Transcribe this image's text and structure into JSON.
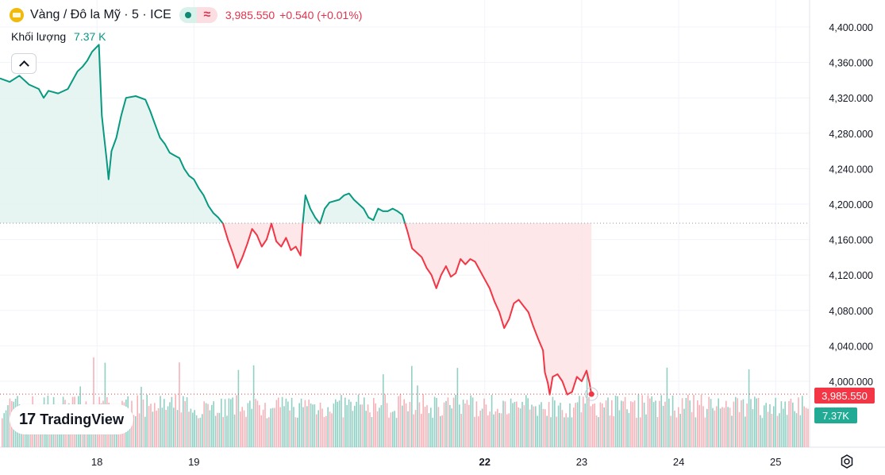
{
  "legend": {
    "title": "Vàng / Đô la Mỹ · 5 · ICE",
    "wave_symbol": "≈",
    "last": "3,985.550",
    "change": "+0.540 (+0.01%)",
    "volume_label": "Khối lượng",
    "volume_value": "7.37 K"
  },
  "logo_text": "TradingView",
  "logo_mark": "17",
  "price_tag": "3,985.550",
  "volume_tag": "7.37K",
  "colors": {
    "up": "#089981",
    "down": "#f23645",
    "up_fill": "#e3f4ef",
    "down_fill": "#fde4e7",
    "vol_up": "#7fc8ba",
    "vol_down": "#f6a4ad",
    "grid": "#f0f3fa"
  },
  "chart_data": {
    "type": "line",
    "baseline": 4178.5,
    "ylim": [
      3940,
      4410
    ],
    "yticks": [
      {
        "v": 4400,
        "label": "4,400.000"
      },
      {
        "v": 4360,
        "label": "4,360.000"
      },
      {
        "v": 4320,
        "label": "4,320.000"
      },
      {
        "v": 4280,
        "label": "4,280.000"
      },
      {
        "v": 4240,
        "label": "4,240.000"
      },
      {
        "v": 4200,
        "label": "4,200.000"
      },
      {
        "v": 4160,
        "label": "4,160.000"
      },
      {
        "v": 4120,
        "label": "4,120.000"
      },
      {
        "v": 4080,
        "label": "4,080.000"
      },
      {
        "v": 4040,
        "label": "4,040.000"
      },
      {
        "v": 4000,
        "label": "4,000.000"
      }
    ],
    "xticks": [
      {
        "x": 18,
        "label": "18",
        "bold": false
      },
      {
        "x": 19,
        "label": "19",
        "bold": false
      },
      {
        "x": 22,
        "label": "22",
        "bold": true
      },
      {
        "x": 23,
        "label": "23",
        "bold": false
      },
      {
        "x": 24,
        "label": "24",
        "bold": false
      },
      {
        "x": 25,
        "label": "25",
        "bold": false
      }
    ],
    "xlim": [
      17.0,
      25.35
    ],
    "series": [
      {
        "points": [
          [
            17.0,
            4342
          ],
          [
            17.1,
            4338
          ],
          [
            17.2,
            4345
          ],
          [
            17.3,
            4335
          ],
          [
            17.4,
            4330
          ],
          [
            17.45,
            4320
          ],
          [
            17.5,
            4328
          ],
          [
            17.6,
            4325
          ],
          [
            17.7,
            4330
          ],
          [
            17.75,
            4340
          ],
          [
            17.8,
            4350
          ],
          [
            17.85,
            4355
          ],
          [
            17.9,
            4362
          ],
          [
            17.95,
            4372
          ],
          [
            18.02,
            4380
          ],
          [
            18.05,
            4300
          ],
          [
            18.07,
            4280
          ],
          [
            18.1,
            4250
          ],
          [
            18.12,
            4228
          ],
          [
            18.15,
            4260
          ],
          [
            18.2,
            4275
          ],
          [
            18.25,
            4300
          ],
          [
            18.3,
            4320
          ],
          [
            18.4,
            4322
          ],
          [
            18.5,
            4318
          ],
          [
            18.55,
            4305
          ],
          [
            18.6,
            4290
          ],
          [
            18.65,
            4275
          ],
          [
            18.7,
            4268
          ],
          [
            18.75,
            4258
          ],
          [
            18.8,
            4255
          ],
          [
            18.85,
            4252
          ],
          [
            18.9,
            4240
          ],
          [
            18.95,
            4232
          ],
          [
            19.0,
            4228
          ],
          [
            19.05,
            4218
          ],
          [
            19.1,
            4210
          ],
          [
            19.15,
            4198
          ],
          [
            19.2,
            4190
          ],
          [
            19.25,
            4185
          ],
          [
            19.3,
            4178
          ],
          [
            19.35,
            4160
          ],
          [
            19.4,
            4145
          ],
          [
            19.45,
            4128
          ],
          [
            19.5,
            4140
          ],
          [
            19.55,
            4155
          ],
          [
            19.6,
            4172
          ],
          [
            19.65,
            4165
          ],
          [
            19.7,
            4152
          ],
          [
            19.75,
            4160
          ],
          [
            19.8,
            4178
          ],
          [
            19.85,
            4158
          ],
          [
            19.9,
            4152
          ],
          [
            19.95,
            4162
          ],
          [
            20.0,
            4148
          ],
          [
            20.05,
            4152
          ],
          [
            20.1,
            4142
          ],
          [
            20.12,
            4175
          ],
          [
            20.15,
            4210
          ],
          [
            20.2,
            4195
          ],
          [
            20.25,
            4185
          ],
          [
            20.3,
            4178
          ],
          [
            20.35,
            4195
          ],
          [
            20.4,
            4202
          ],
          [
            20.5,
            4205
          ],
          [
            20.55,
            4210
          ],
          [
            20.6,
            4212
          ],
          [
            20.65,
            4205
          ],
          [
            20.7,
            4200
          ],
          [
            20.75,
            4195
          ],
          [
            20.8,
            4185
          ],
          [
            20.85,
            4182
          ],
          [
            20.9,
            4195
          ],
          [
            20.95,
            4192
          ],
          [
            21.0,
            4192
          ],
          [
            21.05,
            4195
          ],
          [
            21.1,
            4192
          ],
          [
            21.15,
            4188
          ],
          [
            21.2,
            4170
          ],
          [
            21.25,
            4150
          ],
          [
            21.3,
            4145
          ],
          [
            21.35,
            4140
          ],
          [
            21.4,
            4128
          ],
          [
            21.45,
            4120
          ],
          [
            21.5,
            4105
          ],
          [
            21.55,
            4120
          ],
          [
            21.6,
            4130
          ],
          [
            21.65,
            4118
          ],
          [
            21.7,
            4122
          ],
          [
            21.75,
            4138
          ],
          [
            21.8,
            4132
          ],
          [
            21.85,
            4138
          ],
          [
            21.9,
            4135
          ],
          [
            21.95,
            4125
          ],
          [
            22.0,
            4115
          ],
          [
            22.05,
            4105
          ],
          [
            22.1,
            4090
          ],
          [
            22.15,
            4078
          ],
          [
            22.2,
            4060
          ],
          [
            22.25,
            4070
          ],
          [
            22.3,
            4088
          ],
          [
            22.35,
            4092
          ],
          [
            22.4,
            4085
          ],
          [
            22.45,
            4078
          ],
          [
            22.5,
            4062
          ],
          [
            22.55,
            4048
          ],
          [
            22.6,
            4035
          ],
          [
            22.62,
            4010
          ],
          [
            22.65,
            3998
          ],
          [
            22.67,
            3985
          ],
          [
            22.7,
            4005
          ],
          [
            22.75,
            4008
          ],
          [
            22.8,
            4000
          ],
          [
            22.85,
            3985
          ],
          [
            22.9,
            3988
          ],
          [
            22.95,
            4005
          ],
          [
            23.0,
            4000
          ],
          [
            23.05,
            4012
          ],
          [
            23.08,
            3998
          ],
          [
            23.1,
            3985.5
          ]
        ]
      }
    ],
    "volume": {
      "ylim": [
        0,
        9000
      ]
    }
  }
}
